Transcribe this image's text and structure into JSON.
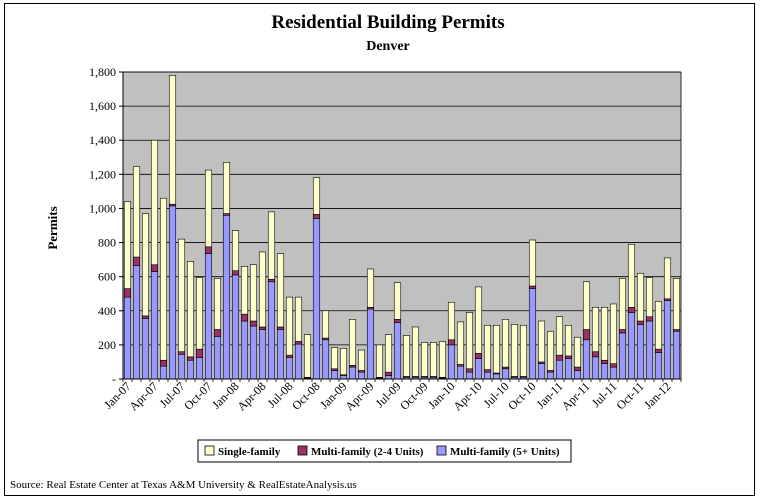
{
  "chart_data": {
    "type": "bar",
    "stacked": true,
    "title": "Residential Building Permits",
    "subtitle": "Denver",
    "ylabel": "Permits",
    "xlabel": "",
    "ylim": [
      0,
      1800
    ],
    "yticks": [
      0,
      200,
      400,
      600,
      800,
      1000,
      1200,
      1400,
      1600,
      1800
    ],
    "ytick_labels": [
      "-",
      "200",
      "400",
      "600",
      "800",
      "1,000",
      "1,200",
      "1,400",
      "1,600",
      "1,800"
    ],
    "grid": true,
    "legend_position": "bottom",
    "source": "Source: Real Estate Center at Texas A&M University & RealEstateAnalysis.us",
    "x_tick_labels": [
      {
        "index": 0,
        "label": "Jan-07"
      },
      {
        "index": 3,
        "label": "Apr-07"
      },
      {
        "index": 6,
        "label": "Jul-07"
      },
      {
        "index": 9,
        "label": "Oct-07"
      },
      {
        "index": 12,
        "label": "Jan-08"
      },
      {
        "index": 15,
        "label": "Apr-08"
      },
      {
        "index": 18,
        "label": "Jul-08"
      },
      {
        "index": 21,
        "label": "Oct-08"
      },
      {
        "index": 24,
        "label": "Jan-09"
      },
      {
        "index": 27,
        "label": "Apr-09"
      },
      {
        "index": 30,
        "label": "Jul-09"
      },
      {
        "index": 33,
        "label": "Oct-09"
      },
      {
        "index": 36,
        "label": "Jan-10"
      },
      {
        "index": 39,
        "label": "Apr-10"
      },
      {
        "index": 42,
        "label": "Jul-10"
      },
      {
        "index": 45,
        "label": "Oct-10"
      },
      {
        "index": 48,
        "label": "Jan-11"
      },
      {
        "index": 51,
        "label": "Apr-11"
      },
      {
        "index": 54,
        "label": "Jul-11"
      },
      {
        "index": 57,
        "label": "Oct-11"
      },
      {
        "index": 60,
        "label": "Jan-12"
      }
    ],
    "categories": [
      "Jan-07",
      "Feb-07",
      "Mar-07",
      "Apr-07",
      "May-07",
      "Jun-07",
      "Jul-07",
      "Aug-07",
      "Sep-07",
      "Oct-07",
      "Nov-07",
      "Dec-07",
      "Jan-08",
      "Feb-08",
      "Mar-08",
      "Apr-08",
      "May-08",
      "Jun-08",
      "Jul-08",
      "Aug-08",
      "Sep-08",
      "Oct-08",
      "Nov-08",
      "Dec-08",
      "Jan-09",
      "Feb-09",
      "Mar-09",
      "Apr-09",
      "May-09",
      "Jun-09",
      "Jul-09",
      "Aug-09",
      "Sep-09",
      "Oct-09",
      "Nov-09",
      "Dec-09",
      "Jan-10",
      "Feb-10",
      "Mar-10",
      "Apr-10",
      "May-10",
      "Jun-10",
      "Jul-10",
      "Aug-10",
      "Sep-10",
      "Oct-10",
      "Nov-10",
      "Dec-10",
      "Jan-11",
      "Feb-11",
      "Mar-11",
      "Apr-11",
      "May-11",
      "Jun-11",
      "Jul-11",
      "Aug-11",
      "Sep-11",
      "Oct-11",
      "Nov-11",
      "Dec-11",
      "Jan-12",
      "Feb-12"
    ],
    "series": [
      {
        "name": "Multi-family (5+ Units)",
        "color": "#9999ff",
        "values": [
          480,
          665,
          355,
          630,
          75,
          1015,
          145,
          110,
          125,
          735,
          250,
          960,
          610,
          340,
          310,
          290,
          570,
          290,
          125,
          205,
          5,
          940,
          230,
          50,
          20,
          70,
          40,
          410,
          5,
          20,
          330,
          10,
          10,
          10,
          10,
          5,
          200,
          75,
          40,
          120,
          40,
          30,
          60,
          10,
          10,
          530,
          90,
          40,
          110,
          120,
          50,
          230,
          130,
          90,
          70,
          270,
          390,
          320,
          340,
          155,
          460,
          280
        ]
      },
      {
        "name": "Multi-family (2-4 Units)",
        "color": "#993366",
        "values": [
          50,
          50,
          15,
          40,
          35,
          10,
          15,
          20,
          50,
          40,
          40,
          10,
          25,
          40,
          30,
          15,
          15,
          15,
          15,
          15,
          5,
          25,
          10,
          10,
          5,
          10,
          10,
          10,
          5,
          20,
          20,
          5,
          5,
          5,
          5,
          5,
          30,
          10,
          20,
          30,
          15,
          5,
          10,
          5,
          5,
          15,
          10,
          10,
          30,
          15,
          20,
          60,
          30,
          20,
          20,
          20,
          30,
          20,
          25,
          20,
          10,
          10
        ]
      },
      {
        "name": "Single-family",
        "color": "#ffffcc",
        "values": [
          510,
          530,
          600,
          730,
          950,
          755,
          660,
          560,
          420,
          450,
          300,
          300,
          235,
          280,
          330,
          440,
          395,
          430,
          340,
          260,
          250,
          215,
          160,
          125,
          155,
          270,
          120,
          225,
          190,
          220,
          215,
          240,
          290,
          200,
          200,
          210,
          220,
          250,
          330,
          390,
          260,
          280,
          280,
          305,
          300,
          270,
          240,
          230,
          225,
          180,
          175,
          280,
          260,
          310,
          350,
          300,
          370,
          280,
          230,
          280,
          240,
          300
        ]
      }
    ]
  }
}
